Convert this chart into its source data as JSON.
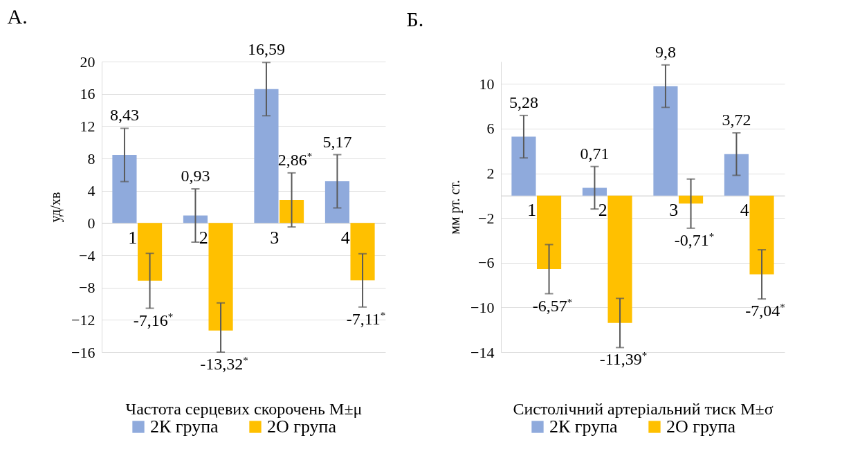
{
  "chart_data": [
    {
      "type": "bar",
      "title": "А.",
      "xlabel": "Частота серцевих скорочень М±μ",
      "ylabel": "уд/хв",
      "categories": [
        "1",
        "2",
        "3",
        "4"
      ],
      "ylim": [
        -16,
        20
      ],
      "yticks": [
        -16,
        -12,
        -8,
        -4,
        0,
        4,
        8,
        12,
        16,
        20
      ],
      "grid": "y",
      "legend": "bottom",
      "series": [
        {
          "name": "2К група",
          "color": "#8faadc",
          "values": [
            8.43,
            0.93,
            16.59,
            5.17
          ],
          "errors": [
            3.3,
            3.3,
            3.3,
            3.3
          ],
          "value_labels": [
            "8,43",
            "0,93",
            "16,59",
            "5,17"
          ]
        },
        {
          "name": "2О група",
          "color": "#ffc000",
          "values": [
            -7.16,
            -13.32,
            2.86,
            -7.11
          ],
          "errors": [
            3.4,
            [
              -16,
              -9.9
            ],
            3.35,
            3.3
          ],
          "value_labels": [
            "-7,16$^{*}$",
            "-13,32$^{*}$",
            "2,86$^{*}$",
            "-7,11$^{*}$"
          ]
        }
      ]
    },
    {
      "type": "bar",
      "title": "Б.",
      "xlabel": "Систолічний артеріальний тиск М±σ",
      "ylabel": "мм рт. ст.",
      "categories": [
        "1",
        "2",
        "3",
        "4"
      ],
      "ylim": [
        -14,
        12
      ],
      "yticks": [
        -14,
        -10,
        -6,
        -2,
        2,
        6,
        10
      ],
      "grid": "y",
      "legend": "bottom",
      "series": [
        {
          "name": "2К група",
          "color": "#8faadc",
          "values": [
            5.28,
            0.71,
            9.8,
            3.72
          ],
          "errors": [
            1.9,
            1.9,
            1.9,
            1.9
          ],
          "value_labels": [
            "5,28",
            "0,71",
            "9,8",
            "3,72"
          ]
        },
        {
          "name": "2О група",
          "color": "#ffc000",
          "values": [
            -6.57,
            -11.39,
            -0.71,
            -7.04
          ],
          "errors": [
            2.2,
            2.2,
            2.2,
            2.2
          ],
          "value_labels": [
            "-6,57$^{*}$",
            "-11,39$^{*}$",
            "-0,71$^{*}$",
            "-7,04$^{*}$"
          ]
        }
      ]
    }
  ]
}
